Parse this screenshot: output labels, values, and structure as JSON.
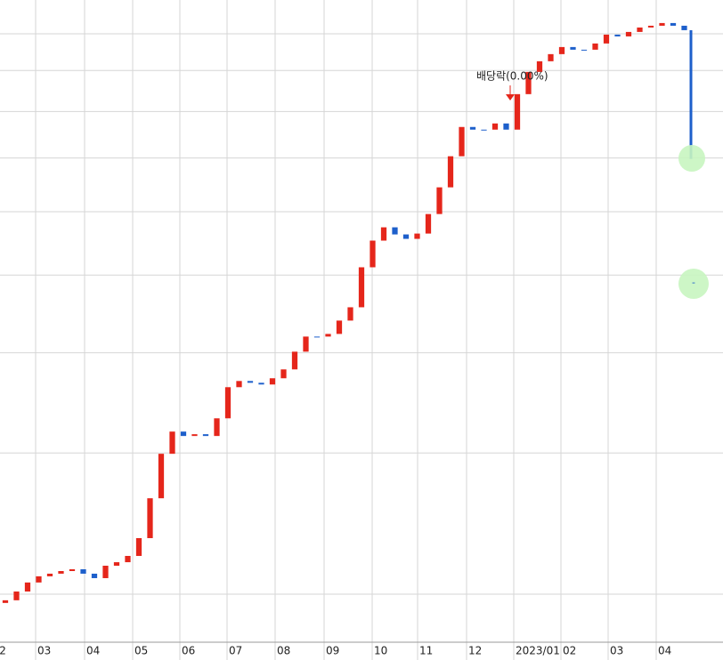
{
  "chart_data": {
    "type": "candlestick",
    "log_scale": true,
    "grid": true,
    "ytick_labels": false,
    "up_color": "#e5261b",
    "down_color": "#1d5fcb",
    "xlim": [
      -0.48,
      64.48
    ],
    "ylim": [
      1.742,
      11.02
    ],
    "yticks": [
      2,
      3,
      4,
      5,
      6,
      7,
      8,
      9,
      10
    ],
    "xticks": [
      {
        "value": -0.7,
        "label": "2"
      },
      {
        "value": 2.72,
        "label": "03"
      },
      {
        "value": 7.12,
        "label": "04"
      },
      {
        "value": 11.44,
        "label": "05"
      },
      {
        "value": 15.68,
        "label": "06"
      },
      {
        "value": 19.92,
        "label": "07"
      },
      {
        "value": 24.24,
        "label": "08"
      },
      {
        "value": 28.64,
        "label": "09"
      },
      {
        "value": 32.96,
        "label": "10"
      },
      {
        "value": 37.04,
        "label": "11"
      },
      {
        "value": 41.44,
        "label": "12"
      },
      {
        "value": 45.68,
        "label": "2023/01"
      },
      {
        "value": 49.92,
        "label": "02"
      },
      {
        "value": 54.16,
        "label": "03"
      },
      {
        "value": 58.48,
        "label": "04"
      }
    ],
    "x": [
      0,
      1,
      2,
      3,
      4,
      5,
      6,
      7,
      8,
      9,
      10,
      11,
      12,
      13,
      14,
      15,
      16,
      17,
      18,
      19,
      20,
      21,
      22,
      23,
      24,
      25,
      26,
      27,
      28,
      29,
      30,
      31,
      32,
      33,
      34,
      35,
      36,
      37,
      38,
      39,
      40,
      41,
      42,
      43,
      44,
      45,
      46,
      47,
      48,
      49,
      50,
      51,
      52,
      53,
      54,
      55,
      56,
      57,
      58,
      59,
      60,
      61,
      61.6
    ],
    "open": [
      1.95,
      1.965,
      2.015,
      2.068,
      2.105,
      2.121,
      2.137,
      2.148,
      2.121,
      2.094,
      2.17,
      2.192,
      2.232,
      2.349,
      2.634,
      2.993,
      3.19,
      3.15,
      3.166,
      3.15,
      3.314,
      3.624,
      3.689,
      3.67,
      3.652,
      3.718,
      3.814,
      4.013,
      4.191,
      4.191,
      4.223,
      4.388,
      4.559,
      5.114,
      5.521,
      5.736,
      5.62,
      5.549,
      5.634,
      5.959,
      6.434,
      7.035,
      7.652,
      7.594,
      7.594,
      7.73,
      7.594,
      8.409,
      8.963,
      9.242,
      9.433,
      9.627,
      9.554,
      9.554,
      9.726,
      9.977,
      9.926,
      10.054,
      10.183,
      10.235,
      10.314,
      10.235,
      10.105
    ],
    "close": [
      1.965,
      2.015,
      2.068,
      2.105,
      2.121,
      2.137,
      2.148,
      2.121,
      2.094,
      2.17,
      2.192,
      2.232,
      2.349,
      2.634,
      2.993,
      3.19,
      3.15,
      3.166,
      3.15,
      3.314,
      3.624,
      3.689,
      3.67,
      3.652,
      3.718,
      3.814,
      4.013,
      4.191,
      4.191,
      4.223,
      4.388,
      4.559,
      5.114,
      5.521,
      5.736,
      5.62,
      5.549,
      5.634,
      5.959,
      6.434,
      7.035,
      7.652,
      7.594,
      7.594,
      7.73,
      7.594,
      8.409,
      8.963,
      9.242,
      9.433,
      9.627,
      9.554,
      9.554,
      9.726,
      9.977,
      9.926,
      10.054,
      10.183,
      10.235,
      10.314,
      10.235,
      10.105,
      6.981
    ],
    "annotation": {
      "text": "배당락(0.00%)",
      "x": 45.36
    },
    "marker_label": "-"
  }
}
